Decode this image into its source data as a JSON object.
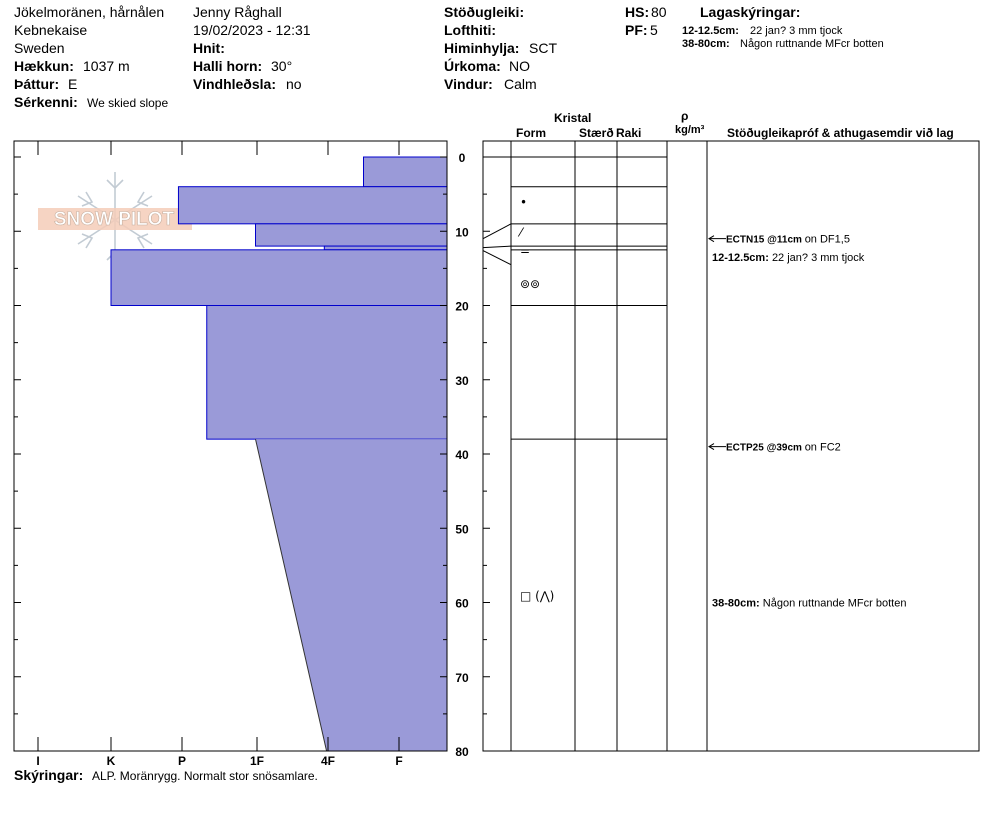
{
  "header": {
    "location": "Jökelmoränen, hårnålen",
    "area": "Kebnekaise",
    "country": "Sweden",
    "elevation_label": "Hækkun:",
    "elevation": "1037 m",
    "aspect_label": "Þáttur:",
    "aspect": "E",
    "specifics_label": "Sérkenni:",
    "specifics": "We skied slope",
    "observer": "Jenny Råghall",
    "datetime": "19/02/2023 - 12:31",
    "coords_label": "Hnit:",
    "slope_label": "Halli horn:",
    "slope": "30°",
    "wind_loading_label": "Vindhleðsla:",
    "wind_loading": "no",
    "stability_label": "Stöðugleiki:",
    "air_temp_label": "Lofthiti:",
    "sky_label": "Himinhylja:",
    "sky": "SCT",
    "precip_label": "Úrkoma:",
    "precip": "NO",
    "wind_label": "Vindur:",
    "wind": "Calm",
    "hs_label": "HS:",
    "hs": "80",
    "pf_label": "PF:",
    "pf": "5",
    "layer_notes_label": "Lagaskýringar:",
    "layer_notes": [
      {
        "range": "12-12.5cm:",
        "text": "22 jan? 3 mm tjock"
      },
      {
        "range": "38-80cm:",
        "text": "Någon ruttnande MFcr botten"
      }
    ],
    "logo_text": "SNOW PILOT"
  },
  "columns": {
    "crystal": "Kristal",
    "form": "Form",
    "size": "Stærð",
    "moisture": "Raki",
    "rho": "ρ",
    "density_unit": "kg/m³",
    "comments": "Stöðugleikapróf & athugasemdir við lag"
  },
  "footer": {
    "label": "Skýringar:",
    "text": "ALP. Moränrygg. Normalt stor snösamlare."
  },
  "chart_data": {
    "type": "area",
    "title": "",
    "xlabel": "",
    "ylabel": "",
    "x_categories": [
      "I",
      "K",
      "P",
      "1F",
      "4F",
      "F"
    ],
    "ylim": [
      80,
      0
    ],
    "y_ticks": [
      0,
      10,
      20,
      30,
      40,
      50,
      60,
      70,
      80
    ],
    "hardness_color": "#9a9ad8",
    "hardness_edge": "#0000cc",
    "layers": [
      {
        "top": 0,
        "bottom": 4,
        "hardness": 5.5
      },
      {
        "top": 4,
        "bottom": 9,
        "hardness": 2.95
      },
      {
        "top": 9,
        "bottom": 12,
        "hardness": 3.98
      },
      {
        "top": 12,
        "bottom": 12.5,
        "hardness": 0.3
      },
      {
        "top": 12.5,
        "bottom": 20,
        "hardness": 2.0
      },
      {
        "top": 20,
        "bottom": 38,
        "hardness": 3.33
      },
      {
        "top": 38,
        "bottom": 80,
        "hardness_top": 3.98,
        "hardness_bottom": 4.98
      }
    ],
    "grain_forms": [
      {
        "depth": 6,
        "symbol": "•"
      },
      {
        "depth": 10,
        "symbol": "⁄"
      },
      {
        "depth": 12.5,
        "symbol": "="
      },
      {
        "depth": 17,
        "symbol": "⊚⊚"
      },
      {
        "depth": 59,
        "symbol": "□ (⋀)"
      }
    ],
    "tests": [
      {
        "depth": 11,
        "code": "ECTN15 @11cm",
        "note": "on DF1,5"
      },
      {
        "depth": 39,
        "code": "ECTP25 @39cm",
        "note": "on FC2"
      }
    ],
    "comments": [
      {
        "depth": 13.5,
        "range": "12-12.5cm:",
        "text": "22 jan? 3 mm tjock"
      },
      {
        "depth": 60,
        "range": "38-80cm:",
        "text": "Någon ruttnande MFcr botten"
      }
    ]
  }
}
